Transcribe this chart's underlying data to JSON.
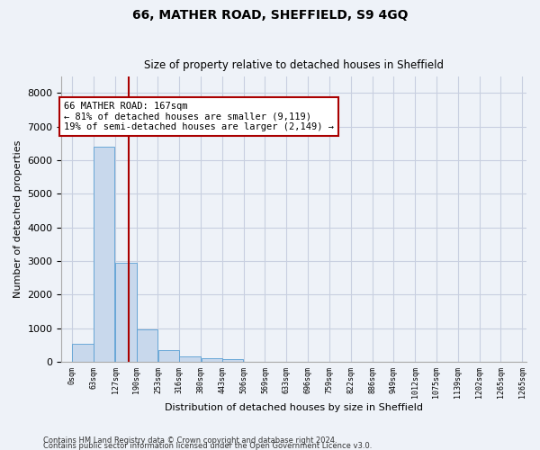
{
  "title": "66, MATHER ROAD, SHEFFIELD, S9 4GQ",
  "subtitle": "Size of property relative to detached houses in Sheffield",
  "xlabel": "Distribution of detached houses by size in Sheffield",
  "ylabel": "Number of detached properties",
  "bar_color": "#c8d8ec",
  "bar_edge_color": "#5a9fd4",
  "annotation_line_color": "#aa0000",
  "annotation_box_color": "#aa0000",
  "grid_color": "#c8cfe0",
  "background_color": "#eef2f8",
  "footer_line1": "Contains HM Land Registry data © Crown copyright and database right 2024.",
  "footer_line2": "Contains public sector information licensed under the Open Government Licence v3.0.",
  "annotation_text": "66 MATHER ROAD: 167sqm\n← 81% of detached houses are smaller (9,119)\n19% of semi-detached houses are larger (2,149) →",
  "property_size": 167,
  "categories": [
    "0sqm",
    "63sqm",
    "127sqm",
    "190sqm",
    "253sqm",
    "316sqm",
    "380sqm",
    "443sqm",
    "506sqm",
    "569sqm",
    "633sqm",
    "696sqm",
    "759sqm",
    "822sqm",
    "886sqm",
    "949sqm",
    "1012sqm",
    "1075sqm",
    "1139sqm",
    "1202sqm",
    "1265sqm"
  ],
  "bin_edges": [
    0,
    63,
    127,
    190,
    253,
    316,
    380,
    443,
    506,
    569,
    633,
    696,
    759,
    822,
    886,
    949,
    1012,
    1075,
    1139,
    1202,
    1265
  ],
  "bin_width": 63,
  "values": [
    550,
    6400,
    2950,
    980,
    350,
    165,
    110,
    70,
    0,
    0,
    0,
    0,
    0,
    0,
    0,
    0,
    0,
    0,
    0,
    0
  ],
  "ylim": [
    0,
    8500
  ],
  "yticks": [
    0,
    1000,
    2000,
    3000,
    4000,
    5000,
    6000,
    7000,
    8000
  ]
}
